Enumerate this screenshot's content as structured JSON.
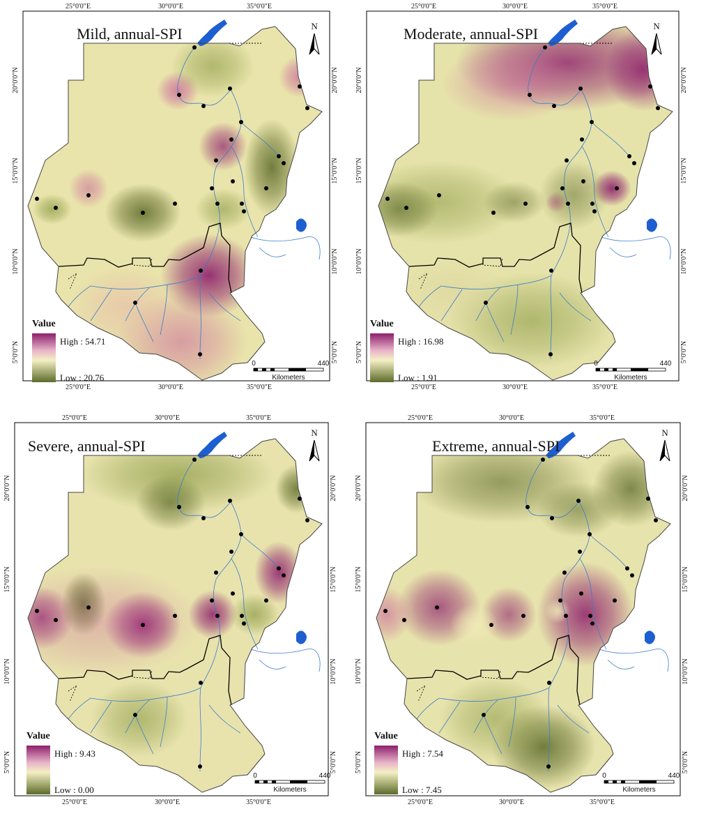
{
  "panels": [
    {
      "title": "Mild, annual-SPI",
      "legend": {
        "title": "Value",
        "high": "High : 54.71",
        "low": "Low : 20.76",
        "high_color": "#8e1f6d",
        "low_color": "#5d6b2a"
      },
      "scale": {
        "start": "0",
        "end": "440",
        "unit": "Kilometers"
      },
      "north": "N",
      "x_ticks": [
        "25°0'0\"E",
        "30°0'0\"E",
        "35°0'0\"E"
      ],
      "y_ticks": [
        "20°0'0\"N",
        "15°0'0\"N",
        "10°0'0\"N",
        "5°0'0\"N"
      ]
    },
    {
      "title": "Moderate, annual-SPI",
      "legend": {
        "title": "Value",
        "high": "High : 16.98",
        "low": "Low : 1.91",
        "high_color": "#8e1f6d",
        "low_color": "#5d6b2a"
      },
      "scale": {
        "start": "0",
        "end": "440",
        "unit": "Kilometers"
      },
      "north": "N",
      "x_ticks": [
        "25°0'0\"E",
        "30°0'0\"E",
        "35°0'0\"E"
      ],
      "y_ticks": [
        "20°0'0\"N",
        "15°0'0\"N",
        "10°0'0\"N",
        "5°0'0\"N"
      ]
    },
    {
      "title": "Severe, annual-SPI",
      "legend": {
        "title": "Value",
        "high": "High : 9.43",
        "low": "Low : 0.00",
        "high_color": "#8e1f6d",
        "low_color": "#5d6b2a"
      },
      "scale": {
        "start": "0",
        "end": "440",
        "unit": "Kilometers"
      },
      "north": "N",
      "x_ticks": [
        "25°0'0\"E",
        "30°0'0\"E",
        "35°0'0\"E"
      ],
      "y_ticks": [
        "20°0'0\"N",
        "15°0'0\"N",
        "10°0'0\"N",
        "5°0'0\"N"
      ]
    },
    {
      "title": "Extreme, annual-SPI",
      "legend": {
        "title": "Value",
        "high": "High : 7.54",
        "low": "Low : 7.45",
        "high_color": "#8e1f6d",
        "low_color": "#5d6b2a"
      },
      "scale": {
        "start": "0",
        "end": "440",
        "unit": "Kilometers"
      },
      "north": "N",
      "x_ticks": [
        "25°0'0\"E",
        "30°0'0\"E",
        "35°0'0\"E"
      ],
      "y_ticks": [
        "20°0'0\"N",
        "15°0'0\"N",
        "10°0'0\"N",
        "5°0'0\"N"
      ]
    }
  ]
}
